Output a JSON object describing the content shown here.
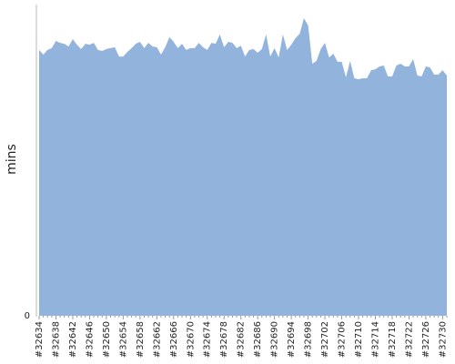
{
  "chart_data": {
    "type": "area",
    "y_label": "mins",
    "color": "#92b4dc",
    "grid": false,
    "ylim": [
      0,
      100
    ],
    "yticks": [
      0
    ],
    "categories": [
      "#32634",
      null,
      null,
      null,
      "#32638",
      null,
      null,
      null,
      "#32642",
      null,
      null,
      null,
      "#32646",
      null,
      null,
      null,
      "#32650",
      null,
      null,
      null,
      "#32654",
      null,
      null,
      null,
      "#32658",
      null,
      null,
      null,
      "#32662",
      null,
      null,
      null,
      "#32666",
      null,
      null,
      null,
      "#32670",
      null,
      null,
      null,
      "#32674",
      null,
      null,
      null,
      "#32678",
      null,
      null,
      null,
      "#32682",
      null,
      null,
      null,
      "#32686",
      null,
      null,
      null,
      "#32690",
      null,
      null,
      null,
      "#32694",
      null,
      null,
      null,
      "#32698",
      null,
      null,
      null,
      "#32702",
      null,
      null,
      null,
      "#32706",
      null,
      null,
      null,
      "#32710",
      null,
      null,
      null,
      "#32714",
      null,
      null,
      null,
      "#32718",
      null,
      null,
      null,
      "#32722",
      null,
      null,
      null,
      "#32726",
      null,
      null,
      null,
      "#32730",
      null
    ],
    "values": [
      85.4,
      83.9,
      85.4,
      86.0,
      88.3,
      87.7,
      87.4,
      86.5,
      88.9,
      87.1,
      85.7,
      87.4,
      87.1,
      87.7,
      85.4,
      85.1,
      85.7,
      86.0,
      86.3,
      83.3,
      83.3,
      84.8,
      86.0,
      87.4,
      88.0,
      86.0,
      87.7,
      86.5,
      86.3,
      83.9,
      86.3,
      89.5,
      88.0,
      86.0,
      87.4,
      85.4,
      86.0,
      86.0,
      87.7,
      86.3,
      85.4,
      87.7,
      87.4,
      90.4,
      86.3,
      88.0,
      87.7,
      86.0,
      86.8,
      83.3,
      85.4,
      85.7,
      84.5,
      85.7,
      90.4,
      83.3,
      86.0,
      83.0,
      90.4,
      85.4,
      87.1,
      89.2,
      90.6,
      95.6,
      93.3,
      81.0,
      81.9,
      85.7,
      87.7,
      83.0,
      84.2,
      81.6,
      81.6,
      76.6,
      81.9,
      76.3,
      76.0,
      76.3,
      76.3,
      78.9,
      79.2,
      80.1,
      80.4,
      76.9,
      76.9,
      80.4,
      81.0,
      80.1,
      80.1,
      82.5,
      77.2,
      76.9,
      80.1,
      79.8,
      77.5,
      77.5,
      78.9,
      77.2
    ]
  }
}
